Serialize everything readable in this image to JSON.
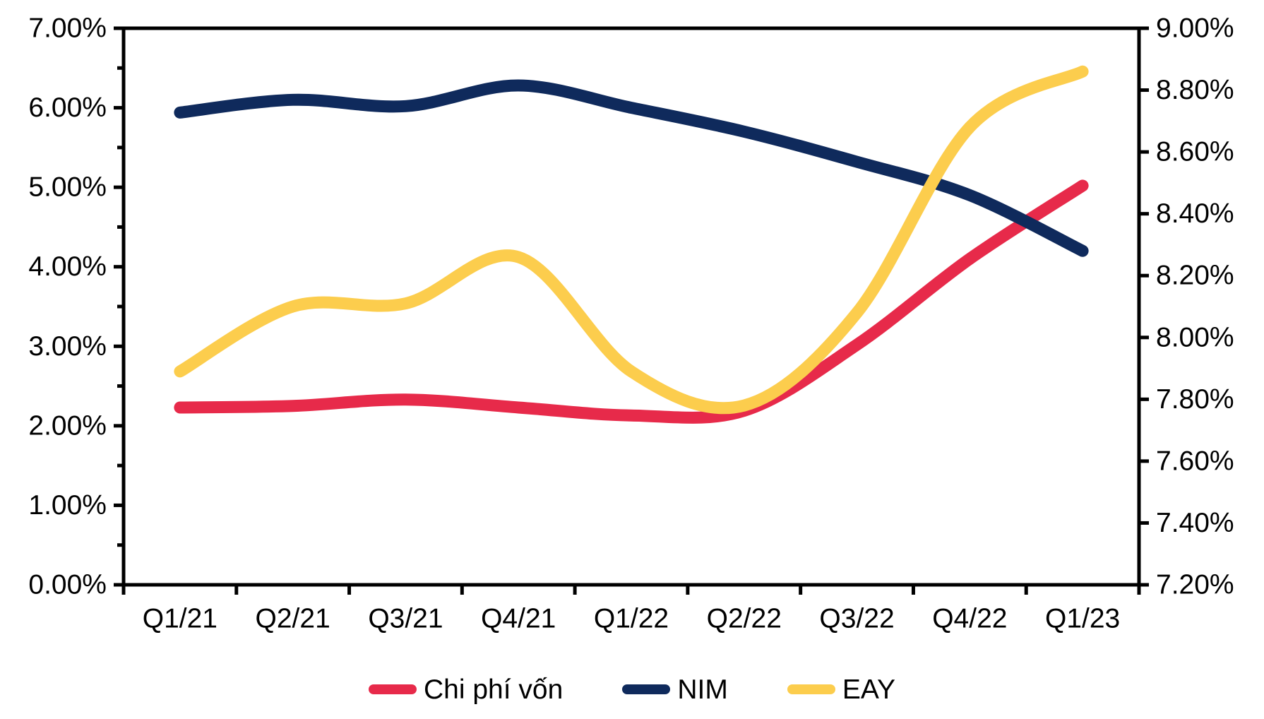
{
  "background": "#FFFFFF",
  "axis_color": "#000000",
  "chart_data": {
    "type": "line",
    "title": "",
    "xlabel": "",
    "ylabel_left": "",
    "ylabel_right": "",
    "grid": "off",
    "legend_position": "bottom",
    "categories": [
      "Q1/21",
      "Q2/21",
      "Q3/21",
      "Q4/21",
      "Q1/22",
      "Q2/22",
      "Q3/22",
      "Q4/22",
      "Q1/23"
    ],
    "series": [
      {
        "name": "Chi phí vốn",
        "axis": "left",
        "color": "#E72A4A",
        "values": [
          2.23,
          2.25,
          2.33,
          2.23,
          2.13,
          2.19,
          3.02,
          4.1,
          5.02
        ]
      },
      {
        "name": "NIM",
        "axis": "left",
        "color": "#0F2A5C",
        "values": [
          5.94,
          6.1,
          6.02,
          6.28,
          6.0,
          5.7,
          5.32,
          4.9,
          4.2
        ]
      },
      {
        "name": "EAY",
        "axis": "right",
        "color": "#FCCD4D",
        "values": [
          7.89,
          8.1,
          8.11,
          8.26,
          7.89,
          7.78,
          8.08,
          8.68,
          8.86
        ]
      }
    ],
    "left_axis": {
      "min": 0,
      "max": 7,
      "major_step": 1,
      "minor_step": 0.5,
      "tick_labels": [
        "0.00%",
        "1.00%",
        "2.00%",
        "3.00%",
        "4.00%",
        "5.00%",
        "6.00%",
        "7.00%"
      ]
    },
    "right_axis": {
      "min": 7.2,
      "max": 9.0,
      "major_step": 0.2,
      "tick_labels": [
        "7.20%",
        "7.40%",
        "7.60%",
        "7.80%",
        "8.00%",
        "8.20%",
        "8.40%",
        "8.60%",
        "8.80%",
        "9.00%"
      ]
    }
  },
  "legend": {
    "items": [
      "Chi phí vốn",
      "NIM",
      "EAY"
    ]
  }
}
